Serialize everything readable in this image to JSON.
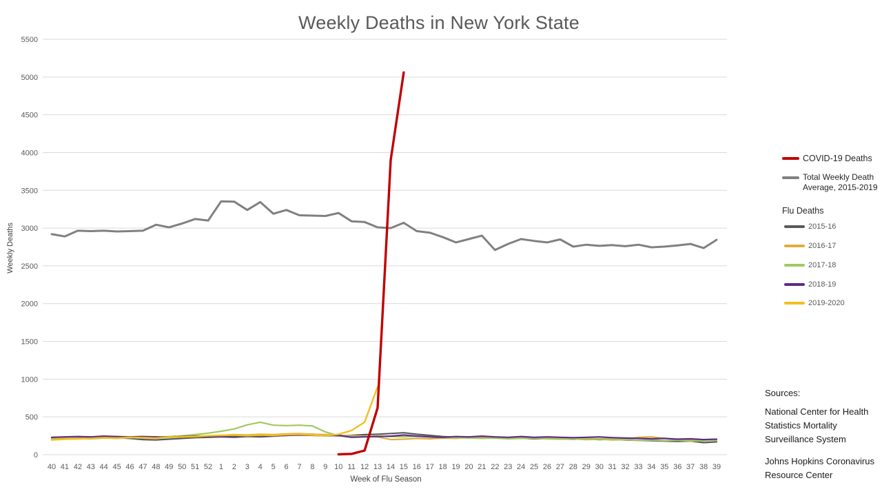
{
  "title": "Weekly Deaths in New York State",
  "y_axis_label": "Weekly Deaths",
  "x_axis_label": "Week of Flu Season",
  "colors": {
    "covid": "#C00000",
    "avg": "#808080",
    "flu_2015_16": "#595959",
    "flu_2016_17": "#DFAE3F",
    "flu_2017_18": "#A0C861",
    "flu_2018_19": "#5B2D86",
    "flu_2019_2020": "#F2C01E",
    "gridline": "#D9D9D9",
    "tick_text": "#595959",
    "title_text": "#595959"
  },
  "legend": {
    "covid_label": "COVID-19 Deaths",
    "avg_label_line1": "Total Weekly Death",
    "avg_label_line2": "Average,  2015-2019",
    "flu_heading": "Flu Deaths",
    "flu_items": [
      {
        "label": "2015-16",
        "color": "#595959"
      },
      {
        "label": "2016-17",
        "color": "#DFAE3F"
      },
      {
        "label": "2017-18",
        "color": "#A0C861"
      },
      {
        "label": "2018-19",
        "color": "#5B2D86"
      },
      {
        "label": "2019-2020",
        "color": "#F2C01E"
      }
    ]
  },
  "sources": {
    "heading": "Sources:",
    "items": [
      "National Center for Health Statistics Mortality Surveillance System",
      "Johns Hopkins Coronavirus Resource Center"
    ]
  },
  "chart_data": {
    "type": "line",
    "title": "Weekly Deaths in New York State",
    "xlabel": "Week of Flu Season",
    "ylabel": "Weekly Deaths",
    "ylim": [
      0,
      5500
    ],
    "ytick_step": 500,
    "grid": "horizontal gridlines only",
    "legend_position": "right",
    "categories": [
      "40",
      "41",
      "42",
      "43",
      "44",
      "45",
      "46",
      "47",
      "48",
      "49",
      "50",
      "51",
      "52",
      "1",
      "2",
      "3",
      "4",
      "5",
      "6",
      "7",
      "8",
      "9",
      "10",
      "11",
      "12",
      "13",
      "14",
      "15",
      "16",
      "17",
      "18",
      "19",
      "20",
      "21",
      "22",
      "23",
      "24",
      "25",
      "26",
      "27",
      "28",
      "29",
      "30",
      "31",
      "32",
      "33",
      "34",
      "35",
      "36",
      "37",
      "38",
      "39"
    ],
    "series": [
      {
        "name": "Total Weekly Death Average, 2015-2019",
        "color": "#808080",
        "width": 3,
        "values": [
          2920,
          2890,
          2965,
          2960,
          2965,
          2955,
          2960,
          2965,
          3045,
          3010,
          3060,
          3120,
          3100,
          3355,
          3350,
          3240,
          3345,
          3190,
          3240,
          3170,
          3165,
          3160,
          3200,
          3090,
          3080,
          3010,
          3000,
          3070,
          2960,
          2940,
          2880,
          2810,
          2855,
          2900,
          2710,
          2790,
          2855,
          2830,
          2810,
          2850,
          2755,
          2780,
          2765,
          2775,
          2760,
          2780,
          2745,
          2755,
          2770,
          2790,
          2735,
          2845
        ]
      },
      {
        "name": "Flu Deaths 2015-16",
        "color": "#595959",
        "width": 2.2,
        "values": [
          225,
          215,
          220,
          230,
          235,
          225,
          215,
          200,
          195,
          205,
          215,
          225,
          230,
          235,
          230,
          240,
          235,
          245,
          255,
          265,
          270,
          260,
          250,
          255,
          265,
          270,
          280,
          290,
          270,
          255,
          240,
          230,
          225,
          230,
          220,
          215,
          220,
          210,
          215,
          210,
          205,
          210,
          200,
          205,
          195,
          190,
          185,
          180,
          175,
          180,
          160,
          170
        ]
      },
      {
        "name": "Flu Deaths 2016-17",
        "color": "#DFAE3F",
        "width": 2.2,
        "values": [
          210,
          220,
          215,
          225,
          230,
          240,
          230,
          225,
          235,
          230,
          240,
          250,
          245,
          255,
          265,
          260,
          270,
          265,
          275,
          280,
          270,
          265,
          255,
          250,
          245,
          235,
          200,
          205,
          215,
          210,
          220,
          215,
          225,
          230,
          220,
          215,
          225,
          215,
          220,
          215,
          220,
          215,
          210,
          215,
          205,
          230,
          235,
          215,
          200,
          195,
          190,
          195
        ]
      },
      {
        "name": "Flu Deaths 2017-18",
        "color": "#A0C861",
        "width": 2.2,
        "values": [
          205,
          210,
          215,
          210,
          220,
          215,
          225,
          220,
          230,
          240,
          250,
          265,
          285,
          310,
          340,
          395,
          430,
          390,
          385,
          390,
          380,
          300,
          250,
          235,
          240,
          245,
          240,
          235,
          245,
          235,
          230,
          225,
          220,
          215,
          220,
          210,
          215,
          220,
          210,
          205,
          210,
          200,
          205,
          195,
          200,
          190,
          195,
          185,
          190,
          180,
          185,
          195
        ]
      },
      {
        "name": "Flu Deaths 2018-19",
        "color": "#5B2D86",
        "width": 2.2,
        "values": [
          230,
          235,
          240,
          235,
          245,
          240,
          235,
          240,
          235,
          230,
          240,
          245,
          240,
          245,
          250,
          245,
          255,
          250,
          255,
          260,
          255,
          250,
          255,
          230,
          235,
          240,
          245,
          260,
          245,
          235,
          230,
          240,
          235,
          245,
          235,
          230,
          240,
          230,
          235,
          230,
          225,
          230,
          235,
          225,
          220,
          215,
          210,
          215,
          205,
          210,
          200,
          205
        ]
      },
      {
        "name": "Flu Deaths 2019-2020",
        "color": "#F2C01E",
        "width": 2.4,
        "values": [
          195,
          205,
          210,
          215,
          225,
          220,
          230,
          225,
          220,
          230,
          235,
          240,
          250,
          255,
          260,
          250,
          260,
          255,
          265,
          270,
          260,
          250,
          270,
          320,
          430,
          900,
          null,
          null,
          null,
          null,
          null,
          null,
          null,
          null,
          null,
          null,
          null,
          null,
          null,
          null,
          null,
          null,
          null,
          null,
          null,
          null,
          null,
          null,
          null,
          null,
          null,
          null
        ]
      },
      {
        "name": "COVID-19 Deaths",
        "color": "#C00000",
        "width": 3.4,
        "values": [
          null,
          null,
          null,
          null,
          null,
          null,
          null,
          null,
          null,
          null,
          null,
          null,
          null,
          null,
          null,
          null,
          null,
          null,
          null,
          null,
          null,
          null,
          5,
          10,
          55,
          620,
          3900,
          5060,
          null,
          null,
          null,
          null,
          null,
          null,
          null,
          null,
          null,
          null,
          null,
          null,
          null,
          null,
          null,
          null,
          null,
          null,
          null,
          null,
          null,
          null,
          null,
          null
        ]
      }
    ]
  }
}
